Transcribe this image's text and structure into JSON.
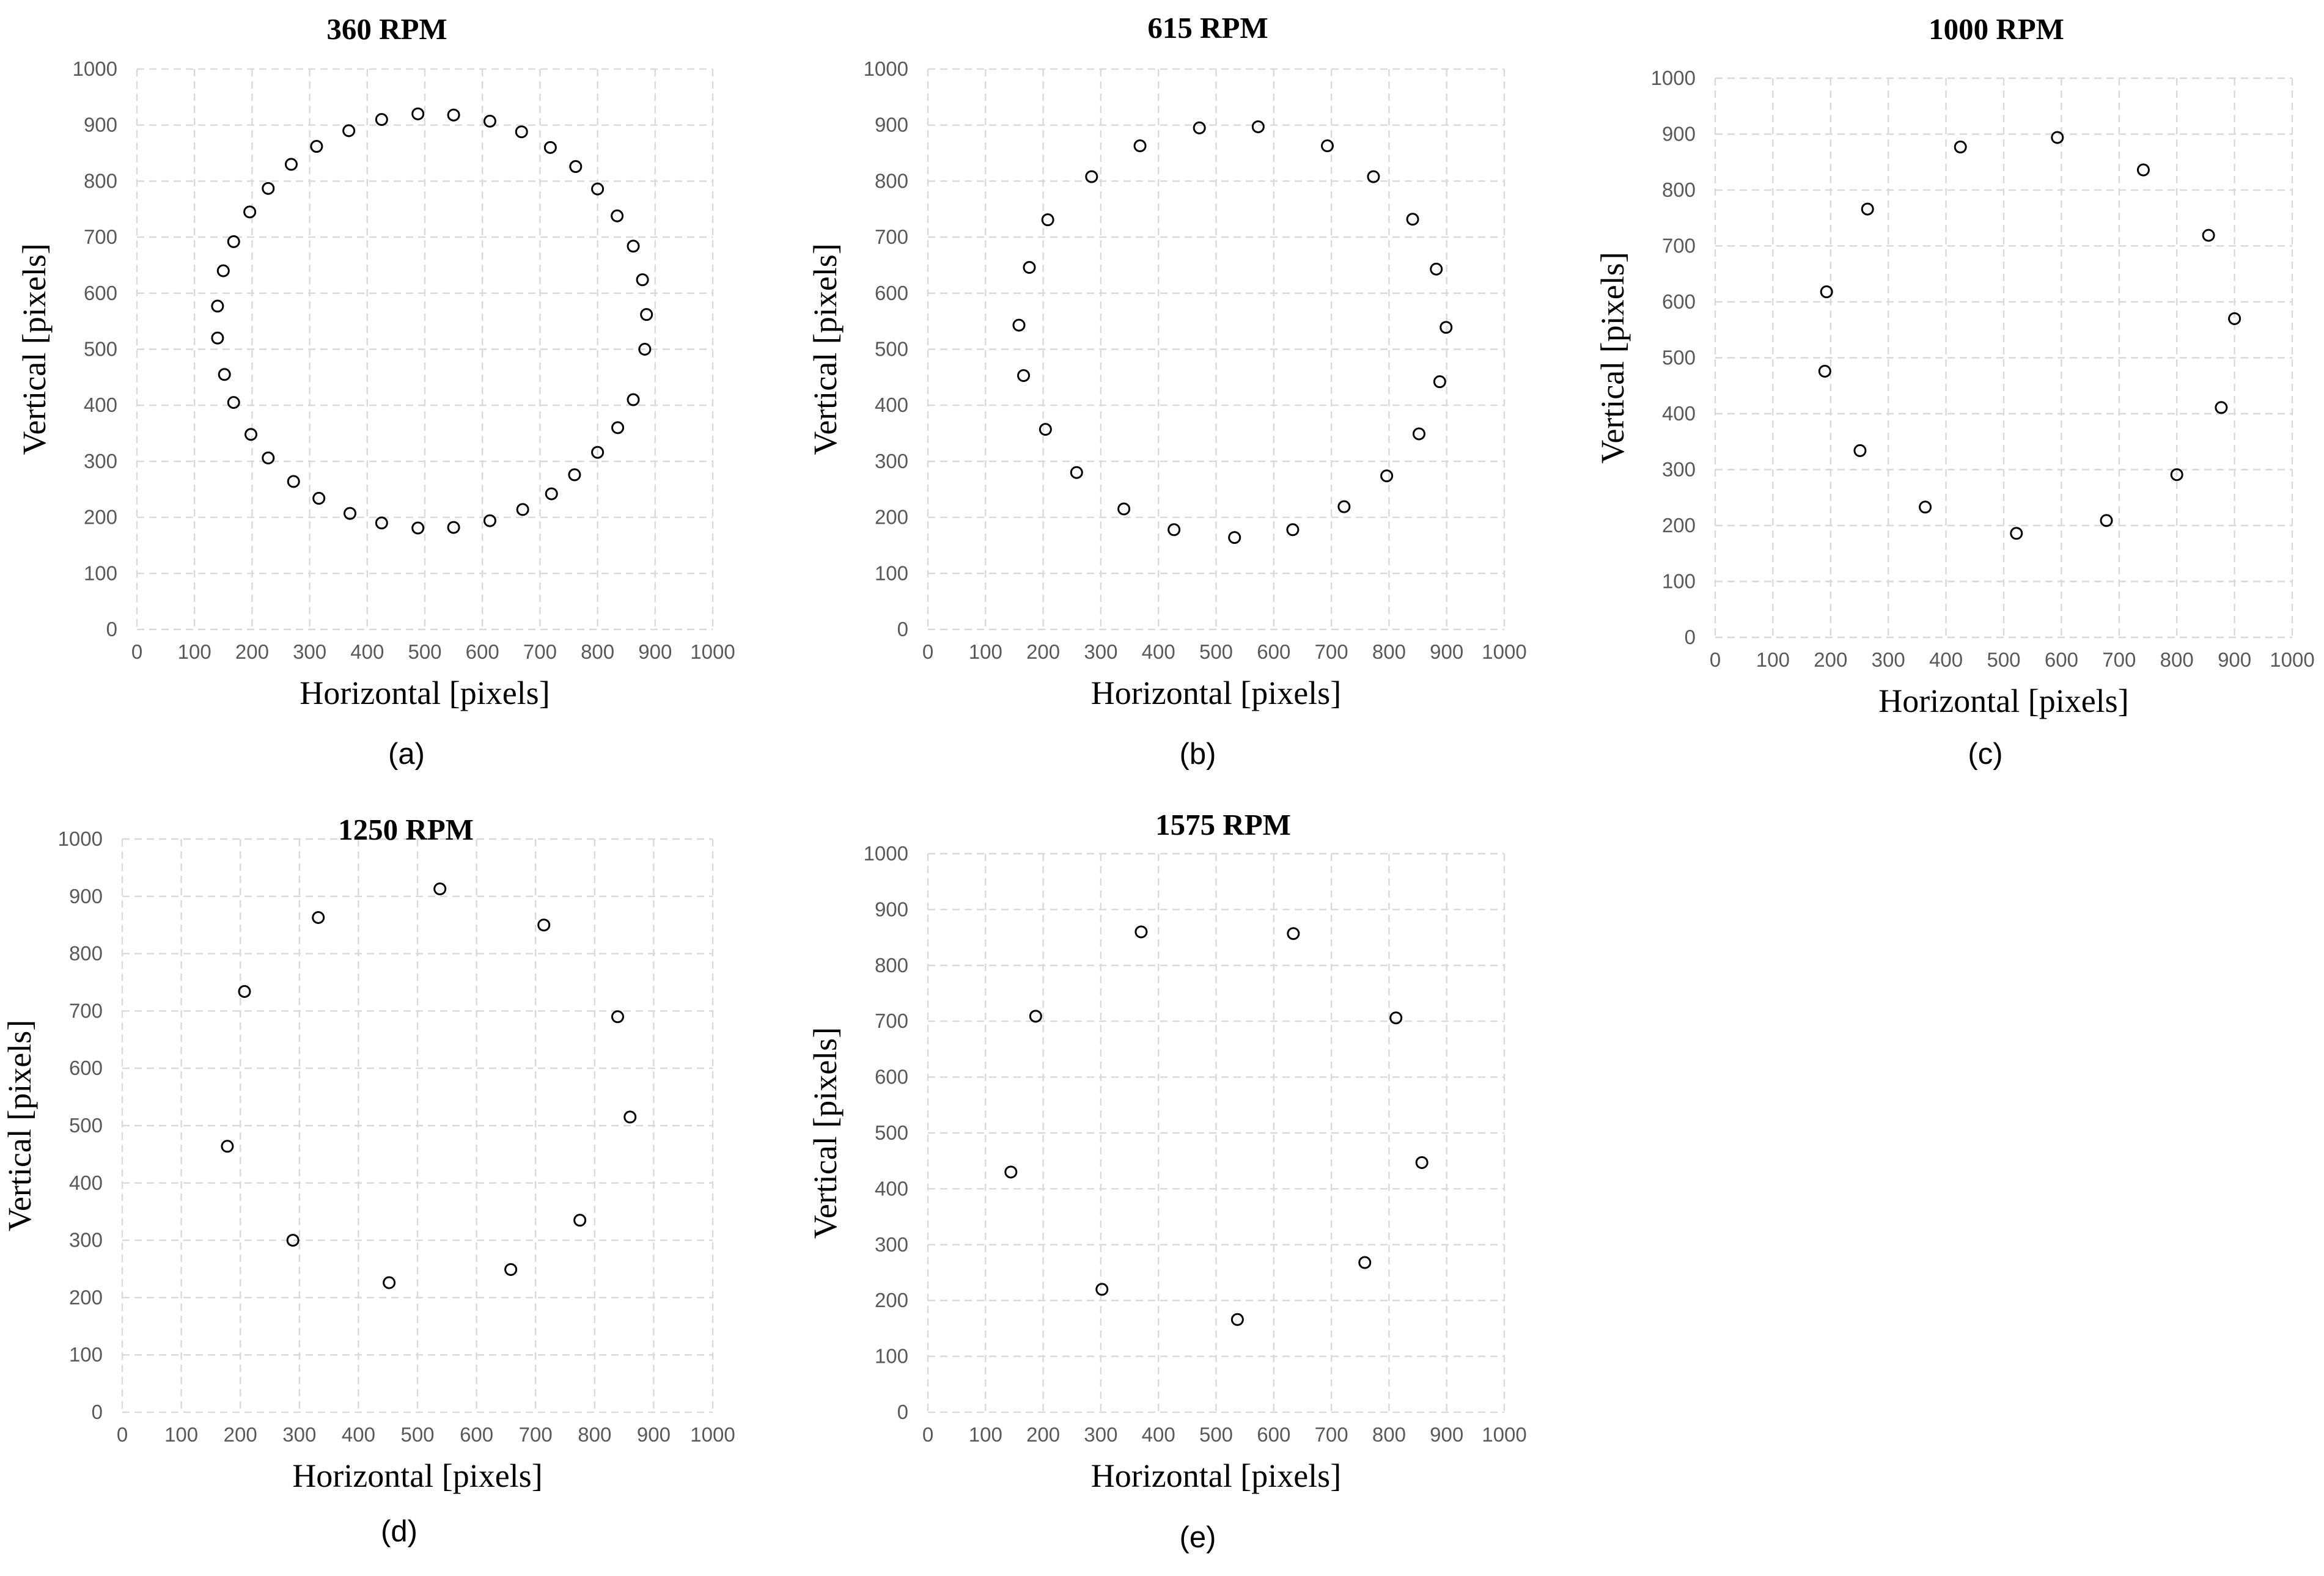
{
  "chart_data": [
    {
      "type": "scatter",
      "title": "360 RPM",
      "panel": "(a)",
      "xlabel": "Horizontal [pixels]",
      "ylabel": "Vertical [pixels]",
      "xlim": [
        0,
        1000
      ],
      "ylim": [
        0,
        1000
      ],
      "xticks": [
        "0",
        "100",
        "200",
        "300",
        "400",
        "500",
        "600",
        "700",
        "800",
        "900",
        "1000"
      ],
      "yticks": [
        "0",
        "100",
        "200",
        "300",
        "400",
        "500",
        "600",
        "700",
        "800",
        "900",
        "1000"
      ],
      "grid": true,
      "points": [
        [
          425,
          910
        ],
        [
          488,
          920
        ],
        [
          550,
          918
        ],
        [
          613,
          907
        ],
        [
          668,
          888
        ],
        [
          718,
          860
        ],
        [
          762,
          826
        ],
        [
          800,
          786
        ],
        [
          834,
          738
        ],
        [
          862,
          684
        ],
        [
          878,
          624
        ],
        [
          885,
          562
        ],
        [
          882,
          500
        ],
        [
          862,
          410
        ],
        [
          835,
          360
        ],
        [
          800,
          316
        ],
        [
          760,
          276
        ],
        [
          720,
          242
        ],
        [
          670,
          214
        ],
        [
          613,
          194
        ],
        [
          550,
          182
        ],
        [
          488,
          181
        ],
        [
          425,
          190
        ],
        [
          370,
          207
        ],
        [
          316,
          234
        ],
        [
          272,
          264
        ],
        [
          228,
          306
        ],
        [
          198,
          348
        ],
        [
          168,
          405
        ],
        [
          152,
          455
        ],
        [
          140,
          520
        ],
        [
          140,
          577
        ],
        [
          150,
          640
        ],
        [
          168,
          692
        ],
        [
          196,
          745
        ],
        [
          228,
          787
        ],
        [
          268,
          830
        ],
        [
          312,
          862
        ],
        [
          368,
          890
        ]
      ]
    },
    {
      "type": "scatter",
      "title": "615 RPM",
      "panel": "(b)",
      "xlabel": "Horizontal [pixels]",
      "ylabel": "Vertical [pixels]",
      "xlim": [
        0,
        1000
      ],
      "ylim": [
        0,
        1000
      ],
      "xticks": [
        "0",
        "100",
        "200",
        "300",
        "400",
        "500",
        "600",
        "700",
        "800",
        "900",
        "1000"
      ],
      "yticks": [
        "0",
        "100",
        "200",
        "300",
        "400",
        "500",
        "600",
        "700",
        "800",
        "900",
        "1000"
      ],
      "grid": true,
      "points": [
        [
          471,
          895
        ],
        [
          573,
          897
        ],
        [
          693,
          863
        ],
        [
          773,
          808
        ],
        [
          841,
          732
        ],
        [
          882,
          643
        ],
        [
          899,
          539
        ],
        [
          888,
          442
        ],
        [
          852,
          349
        ],
        [
          796,
          274
        ],
        [
          722,
          219
        ],
        [
          633,
          178
        ],
        [
          532,
          164
        ],
        [
          427,
          178
        ],
        [
          340,
          215
        ],
        [
          258,
          280
        ],
        [
          204,
          357
        ],
        [
          166,
          453
        ],
        [
          158,
          543
        ],
        [
          176,
          646
        ],
        [
          208,
          731
        ],
        [
          284,
          808
        ],
        [
          368,
          863
        ]
      ]
    },
    {
      "type": "scatter",
      "title": "1000 RPM",
      "panel": "(c)",
      "xlabel": "Horizontal [pixels]",
      "ylabel": "Vertical [pixels]",
      "xlim": [
        0,
        1000
      ],
      "ylim": [
        0,
        1000
      ],
      "xticks": [
        "0",
        "100",
        "200",
        "300",
        "400",
        "500",
        "600",
        "700",
        "800",
        "900",
        "1000"
      ],
      "yticks": [
        "0",
        "100",
        "200",
        "300",
        "400",
        "500",
        "600",
        "700",
        "800",
        "900",
        "1000"
      ],
      "grid": true,
      "points": [
        [
          425,
          877
        ],
        [
          593,
          894
        ],
        [
          742,
          836
        ],
        [
          855,
          719
        ],
        [
          900,
          570
        ],
        [
          877,
          411
        ],
        [
          800,
          291
        ],
        [
          678,
          209
        ],
        [
          522,
          186
        ],
        [
          364,
          233
        ],
        [
          251,
          334
        ],
        [
          190,
          476
        ],
        [
          193,
          618
        ],
        [
          264,
          766
        ]
      ]
    },
    {
      "type": "scatter",
      "title": "1250 RPM",
      "panel": "(d)",
      "xlabel": "Horizontal [pixels]",
      "ylabel": "Vertical [pixels]",
      "xlim": [
        0,
        1000
      ],
      "ylim": [
        0,
        1000
      ],
      "xticks": [
        "0",
        "100",
        "200",
        "300",
        "400",
        "500",
        "600",
        "700",
        "800",
        "900",
        "1000"
      ],
      "yticks": [
        "0",
        "100",
        "200",
        "300",
        "400",
        "500",
        "600",
        "700",
        "800",
        "900",
        "1000"
      ],
      "grid": true,
      "points": [
        [
          538,
          913
        ],
        [
          714,
          850
        ],
        [
          839,
          690
        ],
        [
          860,
          515
        ],
        [
          775,
          335
        ],
        [
          658,
          249
        ],
        [
          452,
          226
        ],
        [
          289,
          300
        ],
        [
          178,
          464
        ],
        [
          207,
          734
        ],
        [
          332,
          863
        ]
      ]
    },
    {
      "type": "scatter",
      "title": "1575 RPM",
      "panel": "(e)",
      "xlabel": "Horizontal [pixels]",
      "ylabel": "Vertical [pixels]",
      "xlim": [
        0,
        1000
      ],
      "ylim": [
        0,
        1000
      ],
      "xticks": [
        "0",
        "100",
        "200",
        "300",
        "400",
        "500",
        "600",
        "700",
        "800",
        "900",
        "1000"
      ],
      "yticks": [
        "0",
        "100",
        "200",
        "300",
        "400",
        "500",
        "600",
        "700",
        "800",
        "900",
        "1000"
      ],
      "grid": true,
      "points": [
        [
          370,
          860
        ],
        [
          634,
          857
        ],
        [
          812,
          706
        ],
        [
          857,
          447
        ],
        [
          758,
          268
        ],
        [
          537,
          166
        ],
        [
          302,
          220
        ],
        [
          144,
          430
        ],
        [
          187,
          709
        ]
      ]
    }
  ]
}
